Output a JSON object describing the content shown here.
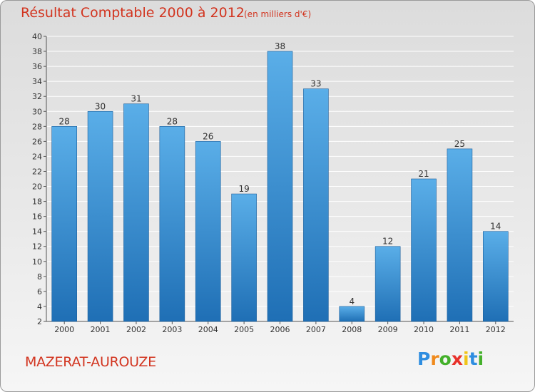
{
  "chart_data": {
    "type": "bar",
    "title": "Résultat Comptable 2000 à 2012",
    "subtitle": "(en milliers d'€)",
    "categories": [
      "2000",
      "2001",
      "2002",
      "2003",
      "2004",
      "2005",
      "2006",
      "2007",
      "2008",
      "2009",
      "2010",
      "2011",
      "2012"
    ],
    "values": [
      28,
      30,
      31,
      28,
      26,
      19,
      38,
      33,
      4,
      12,
      21,
      25,
      14
    ],
    "ylim": [
      2,
      40
    ],
    "ytick_step": 2,
    "xlabel": "",
    "ylabel": "",
    "grid": true,
    "bar_color_top": "#5aaee8",
    "bar_color_bottom": "#1f6fb5"
  },
  "commune": "MAZERAT-AUROUZE",
  "brand": {
    "letters": [
      "P",
      "r",
      "o",
      "x",
      "i",
      "t",
      "i"
    ],
    "colors": [
      "#2e8de0",
      "#f08a1c",
      "#43b02a",
      "#e8312a",
      "#f0c419",
      "#2e8de0",
      "#43b02a"
    ]
  },
  "colors": {
    "title": "#d2341f",
    "grid": "#ffffff",
    "axis": "#555555"
  }
}
